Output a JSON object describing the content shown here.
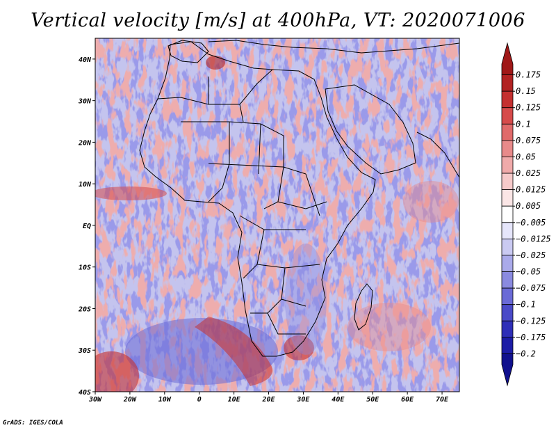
{
  "title": "Vertical velocity [m/s] at 400hPa, VT: 2020071006",
  "footer": "GrADS: IGES/COLA",
  "lon_labels": [
    "30W",
    "20W",
    "10W",
    "0",
    "10E",
    "20E",
    "30E",
    "40E",
    "50E",
    "60E",
    "70E"
  ],
  "lat_labels": [
    "40N",
    "30N",
    "20N",
    "10N",
    "EQ",
    "10S",
    "20S",
    "30S",
    "40S"
  ],
  "extent": {
    "lon": [
      -30,
      75
    ],
    "lat": [
      -40,
      45
    ]
  },
  "colorbar": {
    "levels": [
      "0.175",
      "0.15",
      "0.125",
      "0.1",
      "0.075",
      "0.05",
      "0.025",
      "0.0125",
      "0.005",
      "-0.005",
      "-0.0125",
      "-0.025",
      "-0.05",
      "-0.075",
      "-0.1",
      "-0.125",
      "-0.175",
      "-0.2"
    ],
    "colors": [
      "#a01818",
      "#b22222",
      "#c43030",
      "#d64a4a",
      "#e06a6a",
      "#e88a8a",
      "#f0aaaa",
      "#f6caca",
      "#fbe6e6",
      "#ffffff",
      "#e6e6fb",
      "#cacaf2",
      "#aaaaea",
      "#8a8ae0",
      "#6a6ad6",
      "#4a4ac8",
      "#2e2eb8",
      "#1c1ca6",
      "#10108e"
    ]
  },
  "colors": {
    "positive": "#c43030",
    "negative": "#3434c0",
    "border": "#000000"
  }
}
